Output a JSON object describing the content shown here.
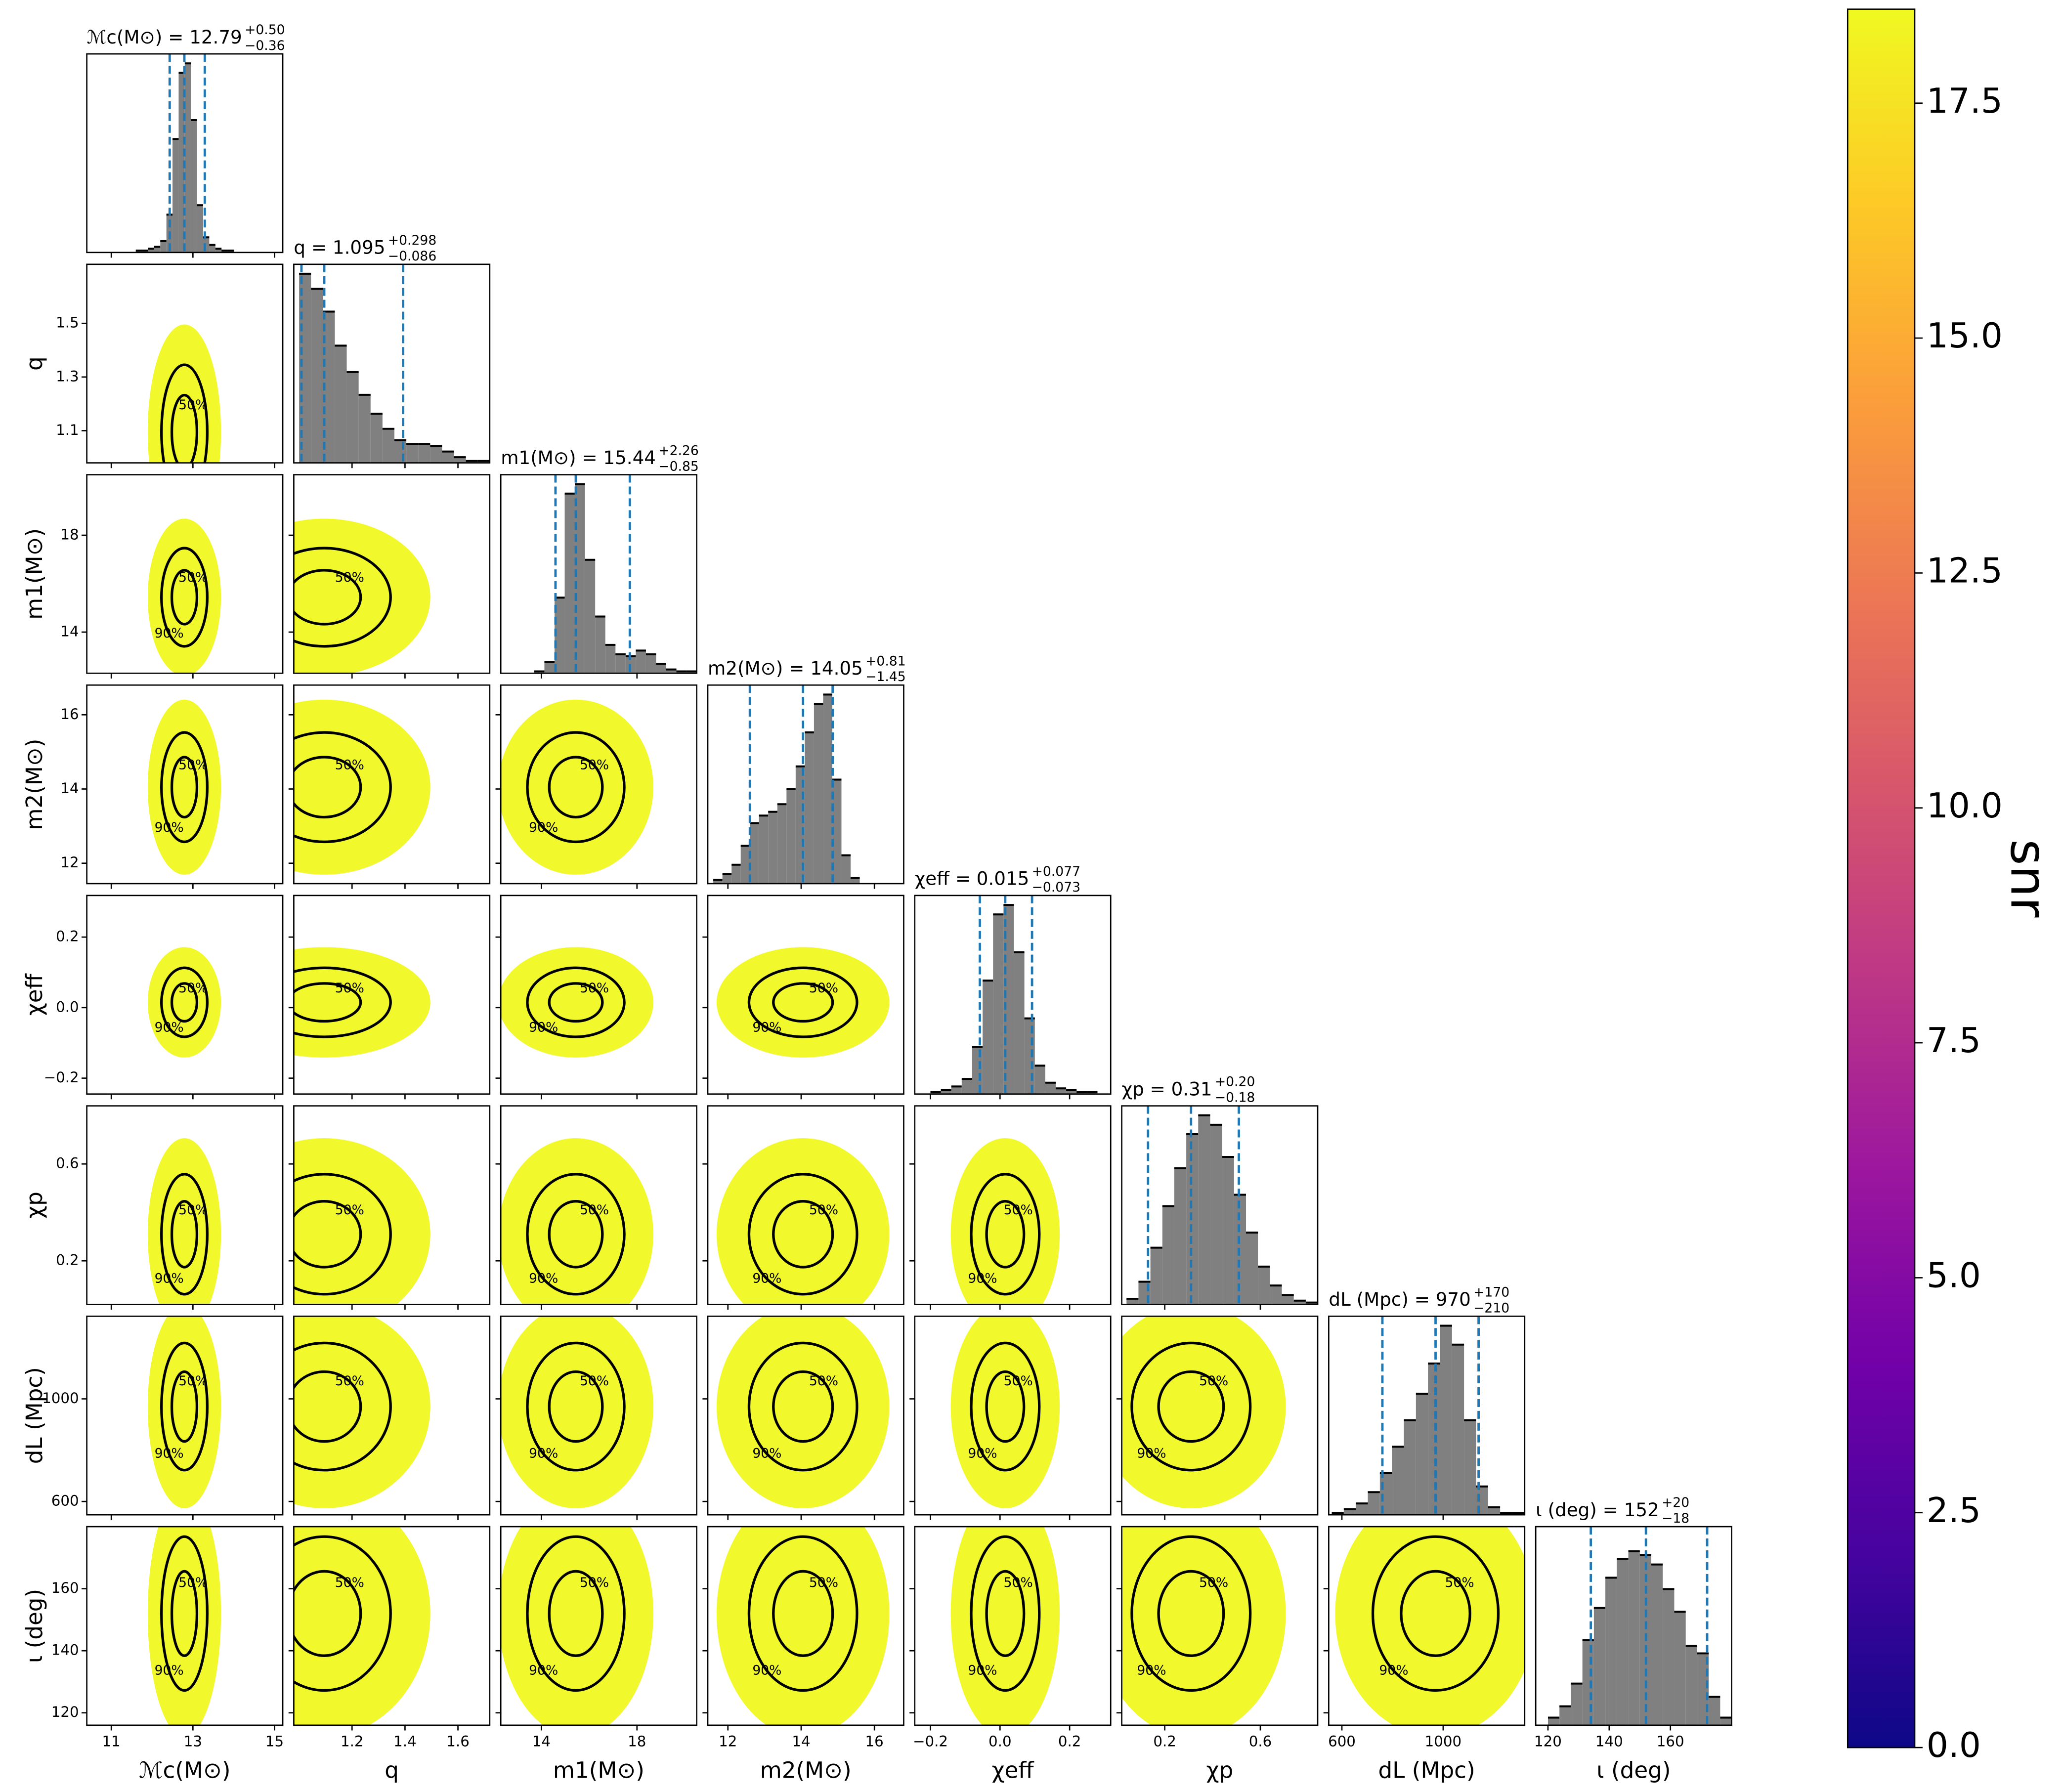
{
  "chart_data": {
    "type": "corner",
    "hist_ylim": [
      0,
      105
    ],
    "hist_color": "#808080",
    "quantile_color": "#1f77b4",
    "cloud_color": "#f0f921",
    "contour_levels": [
      {
        "value": 50,
        "label": "50%"
      },
      {
        "value": 90,
        "label": "90%"
      }
    ],
    "params": [
      {
        "label": "ℳc(M⊙)",
        "title": "ℳc(M⊙) = 12.79",
        "median": 12.79,
        "upper": {
          "value": 0.5,
          "label": "+0.50"
        },
        "lower": {
          "value": 0.36,
          "label": "−0.36"
        },
        "lim": [
          10.4,
          15.2
        ],
        "ticks": [
          11,
          13,
          15
        ],
        "bins": [
          11.6,
          11.75,
          11.9,
          12.05,
          12.2,
          12.35,
          12.5,
          12.65,
          12.8,
          12.95,
          13.1,
          13.25,
          13.4,
          13.55,
          13.7,
          13.85,
          14.0
        ],
        "counts": [
          1,
          1,
          2,
          3,
          6,
          20,
          60,
          95,
          100,
          70,
          25,
          8,
          4,
          2,
          1,
          1
        ]
      },
      {
        "label": "q",
        "title": "q = 1.095",
        "median": 1.095,
        "upper": {
          "value": 0.298,
          "label": "+0.298"
        },
        "lower": {
          "value": 0.086,
          "label": "−0.086"
        },
        "lim": [
          0.98,
          1.72
        ],
        "ticks": [
          1.2,
          1.4,
          1.6
        ],
        "yticks": [
          1.1,
          1.3,
          1.5
        ],
        "bins": [
          1.0,
          1.045,
          1.09,
          1.135,
          1.18,
          1.225,
          1.27,
          1.315,
          1.36,
          1.405,
          1.45,
          1.495,
          1.54,
          1.585,
          1.63,
          1.675,
          1.72
        ],
        "counts": [
          100,
          92,
          80,
          62,
          48,
          36,
          26,
          18,
          12,
          10,
          10,
          9,
          6,
          3,
          1,
          1
        ]
      },
      {
        "label": "m1(M⊙)",
        "title": "m1(M⊙) = 15.44",
        "median": 15.44,
        "upper": {
          "value": 2.26,
          "label": "+2.26"
        },
        "lower": {
          "value": 0.85,
          "label": "−0.85"
        },
        "lim": [
          12.3,
          20.5
        ],
        "ticks": [
          14,
          18
        ],
        "bins": [
          13.7,
          14.125,
          14.55,
          14.975,
          15.4,
          15.825,
          16.25,
          16.675,
          17.1,
          17.525,
          17.95,
          18.375,
          18.8,
          19.225,
          19.65,
          20.075,
          20.5
        ],
        "counts": [
          1,
          6,
          40,
          95,
          100,
          60,
          30,
          15,
          10,
          9,
          12,
          10,
          5,
          2,
          1,
          1
        ]
      },
      {
        "label": "m2(M⊙)",
        "title": "m2(M⊙) = 14.05",
        "median": 14.05,
        "upper": {
          "value": 0.81,
          "label": "+0.81"
        },
        "lower": {
          "value": 1.45,
          "label": "−1.45"
        },
        "lim": [
          11.45,
          16.8
        ],
        "ticks": [
          12,
          14,
          16
        ],
        "bins": [
          11.6,
          11.85,
          12.1,
          12.35,
          12.6,
          12.85,
          13.1,
          13.35,
          13.6,
          13.85,
          14.1,
          14.35,
          14.6,
          14.85,
          15.1,
          15.35,
          15.6
        ],
        "counts": [
          2,
          5,
          10,
          20,
          32,
          36,
          38,
          42,
          50,
          62,
          80,
          95,
          100,
          55,
          15,
          3
        ]
      },
      {
        "label": "χeff",
        "title": "χeff = 0.015",
        "median": 0.015,
        "upper": {
          "value": 0.077,
          "label": "+0.077"
        },
        "lower": {
          "value": 0.073,
          "label": "−0.073"
        },
        "lim": [
          -0.245,
          0.318
        ],
        "ticks": [
          {
            "value": -0.2,
            "label": "−0.2"
          },
          {
            "value": 0,
            "label": "0.0"
          },
          0.2
        ],
        "bins": [
          -0.2,
          -0.17,
          -0.14,
          -0.11,
          -0.08,
          -0.05,
          -0.02,
          0.01,
          0.04,
          0.07,
          0.1,
          0.13,
          0.16,
          0.19,
          0.22,
          0.25,
          0.28
        ],
        "counts": [
          1,
          2,
          4,
          8,
          25,
          60,
          95,
          100,
          75,
          40,
          15,
          6,
          3,
          2,
          1,
          1
        ]
      },
      {
        "label": "χp",
        "title": "χp = 0.31",
        "median": 0.31,
        "upper": {
          "value": 0.2,
          "label": "+0.20"
        },
        "lower": {
          "value": 0.18,
          "label": "−0.18"
        },
        "lim": [
          0.02,
          0.84
        ],
        "ticks": [
          0.2,
          0.6
        ],
        "bins": [
          0.04,
          0.09,
          0.14,
          0.19,
          0.24,
          0.29,
          0.34,
          0.39,
          0.44,
          0.49,
          0.54,
          0.59,
          0.64,
          0.69,
          0.74,
          0.79,
          0.84
        ],
        "counts": [
          3,
          12,
          30,
          52,
          72,
          90,
          100,
          95,
          78,
          58,
          38,
          20,
          10,
          5,
          2,
          1
        ]
      },
      {
        "label": "dL (Mpc)",
        "title": "dL (Mpc) = 970",
        "median": 970,
        "upper": {
          "value": 170,
          "label": "+170"
        },
        "lower": {
          "value": 210,
          "label": "−210"
        },
        "lim": [
          548,
          1322
        ],
        "ticks": [
          600,
          1000
        ],
        "bins": [
          560,
          607.5,
          655,
          702.5,
          750,
          797.5,
          845,
          892.5,
          940,
          987.5,
          1035,
          1082.5,
          1130,
          1177.5,
          1225,
          1272.5,
          1320
        ],
        "counts": [
          1,
          3,
          6,
          12,
          22,
          36,
          50,
          64,
          80,
          100,
          90,
          50,
          15,
          4,
          1,
          1
        ]
      },
      {
        "label": "ι (deg)",
        "title": "ι (deg) = 152",
        "median": 152,
        "upper": {
          "value": 20,
          "label": "+20"
        },
        "lower": {
          "value": 18,
          "label": "−18"
        },
        "lim": [
          116,
          180
        ],
        "ticks": [
          120,
          140,
          160
        ],
        "bins": [
          120,
          123.75,
          127.5,
          131.25,
          135,
          138.75,
          142.5,
          146.25,
          150,
          153.75,
          157.5,
          161.25,
          165,
          168.75,
          172.5,
          176.25,
          180
        ],
        "counts": [
          4,
          10,
          22,
          45,
          62,
          78,
          88,
          92,
          90,
          85,
          72,
          60,
          42,
          38,
          15,
          4
        ]
      }
    ],
    "colorbar": {
      "label": "snr",
      "lim": [
        0,
        18.5
      ],
      "ticks": [
        {
          "value": 0,
          "label": "0.0"
        },
        2.5,
        {
          "value": 5,
          "label": "5.0"
        },
        7.5,
        {
          "value": 10,
          "label": "10.0"
        },
        12.5,
        {
          "value": 15,
          "label": "15.0"
        },
        17.5
      ],
      "colors": [
        "#0d0887",
        "#46039f",
        "#7201a8",
        "#9c179e",
        "#bd3786",
        "#d8576b",
        "#ed7953",
        "#fb9f3a",
        "#fdca26",
        "#f0f921"
      ]
    }
  }
}
